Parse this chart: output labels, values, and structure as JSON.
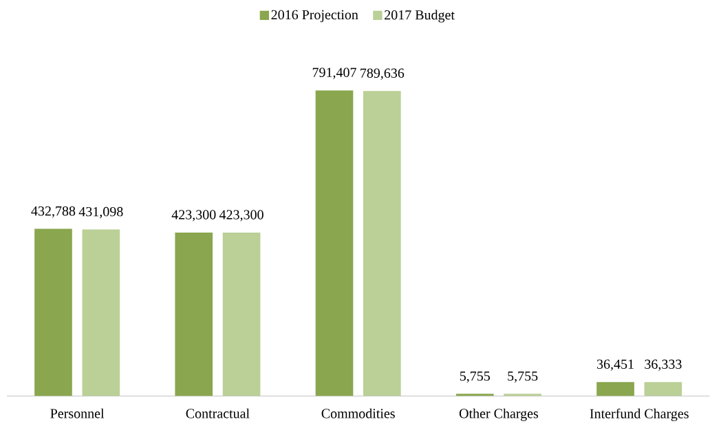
{
  "chart_data": {
    "type": "bar",
    "categories": [
      "Personnel",
      "Contractual",
      "Commodities",
      "Other Charges",
      "Interfund Charges"
    ],
    "series": [
      {
        "name": "2016 Projection",
        "color": "#8aa64e",
        "values": [
          432788,
          423300,
          791407,
          5755,
          36451
        ],
        "value_labels": [
          "432,788",
          "423,300",
          "791,407",
          "5,755",
          "36,451"
        ]
      },
      {
        "name": "2017 Budget",
        "color": "#bad096",
        "values": [
          431098,
          423300,
          789636,
          5755,
          36333
        ],
        "value_labels": [
          "431,098",
          "423,300",
          "789,636",
          "5,755",
          "36,333"
        ]
      }
    ],
    "legend": "top"
  }
}
